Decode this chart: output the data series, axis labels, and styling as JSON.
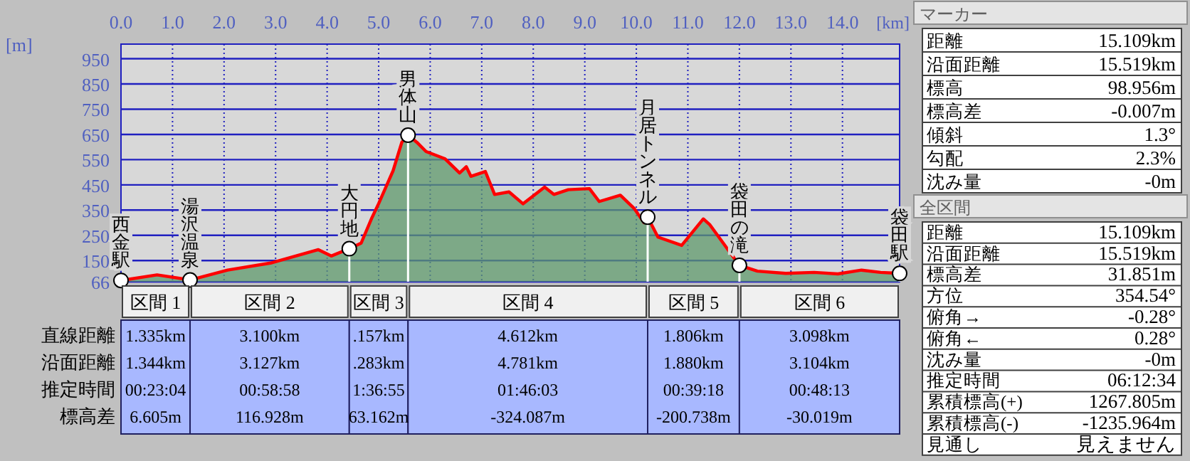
{
  "chart_data": [
    {
      "type": "area",
      "xlabel": "[km]",
      "ylabel": "[m]",
      "color": "#5f9a6c",
      "grid": true,
      "x": [
        0,
        0.7,
        1.34,
        2.07,
        2.9,
        3.83,
        4.08,
        4.43,
        4.66,
        4.87,
        5.0,
        5.28,
        5.45,
        5.57,
        5.74,
        5.92,
        6.29,
        6.57,
        6.7,
        6.79,
        7.07,
        7.25,
        7.53,
        7.8,
        8.22,
        8.4,
        8.68,
        9.09,
        9.28,
        9.69,
        9.96,
        10.15,
        10.22,
        10.42,
        10.88,
        11.3,
        11.43,
        12.0,
        12.35,
        12.9,
        13.45,
        13.91,
        14.37,
        14.74,
        15.109
      ],
      "values": [
        71,
        93,
        73,
        112,
        140,
        193,
        168,
        197,
        219,
        320,
        376,
        506,
        619,
        647,
        619,
        582,
        553,
        497,
        522,
        484,
        503,
        412,
        422,
        375,
        441,
        412,
        431,
        435,
        384,
        409,
        356,
        300,
        322,
        243,
        210,
        315,
        291,
        131,
        108,
        99,
        103,
        97,
        112,
        103,
        99
      ],
      "xlim": [
        0,
        15.109
      ],
      "ylim": [
        66,
        1008
      ],
      "xticks": [
        {
          "value": 0,
          "label": "0.0"
        },
        {
          "value": 1,
          "label": "1.0"
        },
        {
          "value": 2,
          "label": "2.0"
        },
        {
          "value": 3,
          "label": "3.0"
        },
        {
          "value": 4,
          "label": "4.0"
        },
        {
          "value": 5,
          "label": "5.0"
        },
        {
          "value": 6,
          "label": "6.0"
        },
        {
          "value": 7,
          "label": "7.0"
        },
        {
          "value": 8,
          "label": "8.0"
        },
        {
          "value": 9,
          "label": "9.0"
        },
        {
          "value": 10,
          "label": "10.0"
        },
        {
          "value": 11,
          "label": "11.0"
        },
        {
          "value": 12,
          "label": "12.0"
        },
        {
          "value": 13,
          "label": "13.0"
        },
        {
          "value": 14,
          "label": "14.0"
        }
      ],
      "yticks": [
        66,
        150,
        250,
        350,
        450,
        550,
        650,
        750,
        850,
        950
      ],
      "annotations": [
        {
          "text": "西金駅",
          "x": 0,
          "y": 71
        },
        {
          "text": "湯沢温泉",
          "x": 1.34,
          "y": 73
        },
        {
          "text": "大円地",
          "x": 4.43,
          "y": 197
        },
        {
          "text": "男体山",
          "x": 5.57,
          "y": 647
        },
        {
          "text": "月居トンネル",
          "x": 10.22,
          "y": 322
        },
        {
          "text": "袋田の滝",
          "x": 12.0,
          "y": 131
        },
        {
          "text": "袋田駅",
          "x": 15.109,
          "y": 99
        }
      ]
    },
    {
      "type": "other",
      "categories": [
        "区間 1",
        "区間 2",
        "区間 3",
        "区間 4",
        "区間 5",
        "区間 6"
      ],
      "y_categories": [
        "直線距離",
        "沿面距離",
        "推定時間",
        "標高差"
      ],
      "cell_labels": [
        [
          "1.335km",
          "3.100km",
          ".157km",
          "4.612km",
          "1.806km",
          "3.098km"
        ],
        [
          "1.344km",
          "3.127km",
          ".283km",
          "4.781km",
          "1.880km",
          "3.104km"
        ],
        [
          "00:23:04",
          "00:58:58",
          "1:36:55",
          "01:46:03",
          "00:39:18",
          "00:48:13"
        ],
        [
          "6.605m",
          "116.928m",
          "63.162m",
          "-324.087m",
          "-200.738m",
          "-30.019m"
        ]
      ]
    },
    {
      "type": "other",
      "title": "マーカー",
      "y_categories": [
        "距離",
        "沿面距離",
        "標高",
        "標高差",
        "傾斜",
        "勾配",
        "沈み量"
      ],
      "cell_labels": [
        [
          "15.109km"
        ],
        [
          "15.519km"
        ],
        [
          "98.956m"
        ],
        [
          "-0.007m"
        ],
        [
          "1.3°"
        ],
        [
          "2.3%"
        ],
        [
          "-0m"
        ]
      ]
    },
    {
      "type": "other",
      "title": "全区間",
      "y_categories": [
        "距離",
        "沿面距離",
        "標高差",
        "方位",
        "俯角→",
        "俯角←",
        "沈み量",
        "推定時間",
        "累積標高(+)",
        "累積標高(-)",
        "見通し"
      ],
      "cell_labels": [
        [
          "15.109km"
        ],
        [
          "15.519km"
        ],
        [
          "31.851m"
        ],
        [
          "354.54°"
        ],
        [
          "-0.28°"
        ],
        [
          "0.28°"
        ],
        [
          "-0m"
        ],
        [
          "06:12:34"
        ],
        [
          "1267.805m"
        ],
        [
          "-1235.964m"
        ],
        [
          "見えません"
        ]
      ]
    }
  ]
}
